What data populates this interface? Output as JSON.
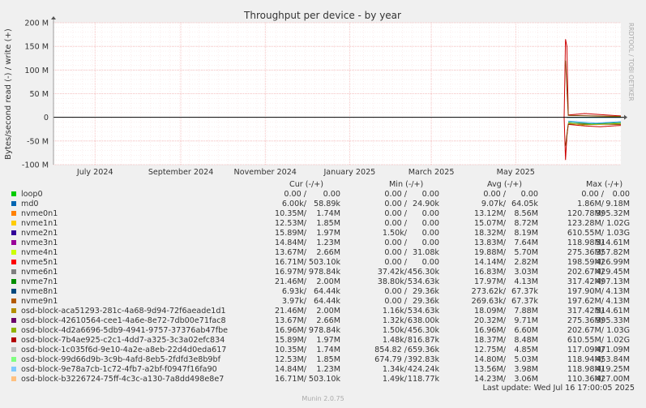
{
  "chart_data": {
    "type": "line",
    "title": "Throughput per device - by year",
    "ylabel": "Bytes/second read (-) / write (+)",
    "ylim": [
      -100000000,
      200000000
    ],
    "yticks": [
      {
        "value": 200000000,
        "label": "200 M"
      },
      {
        "value": 150000000,
        "label": "150 M"
      },
      {
        "value": 100000000,
        "label": "100 M"
      },
      {
        "value": 50000000,
        "label": "50 M"
      },
      {
        "value": 0,
        "label": "0"
      },
      {
        "value": -50000000,
        "label": "-50 M"
      },
      {
        "value": -100000000,
        "label": "-100 M"
      }
    ],
    "xlim": [
      "2024-06-01",
      "2025-07-16"
    ],
    "xticks": [
      {
        "date": "2024-07-01",
        "label": "July 2024"
      },
      {
        "date": "2024-09-01",
        "label": "September 2024"
      },
      {
        "date": "2024-11-01",
        "label": "November 2024"
      },
      {
        "date": "2025-01-01",
        "label": "January 2025"
      },
      {
        "date": "2025-03-01",
        "label": "March 2025"
      },
      {
        "date": "2025-05-01",
        "label": "May 2025"
      }
    ],
    "grid": true,
    "colors": {
      "grid": "#f4b8b8",
      "axis": "#000000",
      "background": "#ffffff",
      "canvas": "#f0f0f0"
    },
    "series_traces": [
      {
        "color": "#cc0000",
        "write": [
          [
            "2025-06-05",
            0
          ],
          [
            "2025-06-06",
            165000000
          ],
          [
            "2025-06-07",
            150000000
          ],
          [
            "2025-06-08",
            5000000
          ],
          [
            "2025-06-20",
            8000000
          ],
          [
            "2025-07-16",
            3000000
          ]
        ],
        "read": [
          [
            "2025-06-05",
            0
          ],
          [
            "2025-06-06",
            -90000000
          ],
          [
            "2025-06-07",
            -40000000
          ],
          [
            "2025-06-08",
            -15000000
          ],
          [
            "2025-06-20",
            -18000000
          ],
          [
            "2025-07-01",
            -20000000
          ],
          [
            "2025-07-16",
            -17000000
          ]
        ]
      },
      {
        "color": "#7b4400",
        "write": [
          [
            "2025-06-06",
            120000000
          ],
          [
            "2025-06-08",
            4000000
          ],
          [
            "2025-07-16",
            2000000
          ]
        ],
        "read": [
          [
            "2025-06-06",
            -60000000
          ],
          [
            "2025-06-08",
            -14000000
          ],
          [
            "2025-07-16",
            -15000000
          ]
        ]
      },
      {
        "color": "#aaaa00",
        "write": [
          [
            "2025-06-07",
            0
          ],
          [
            "2025-07-16",
            1000000
          ]
        ],
        "read": [
          [
            "2025-06-08",
            -12000000
          ],
          [
            "2025-06-18",
            -16000000
          ],
          [
            "2025-07-16",
            -13000000
          ]
        ]
      },
      {
        "color": "#00aa55",
        "write": [
          [
            "2025-06-07",
            0
          ],
          [
            "2025-07-16",
            0
          ]
        ],
        "read": [
          [
            "2025-06-08",
            -10000000
          ],
          [
            "2025-06-25",
            -14000000
          ],
          [
            "2025-07-16",
            -11000000
          ]
        ]
      },
      {
        "color": "#55aaff",
        "write": [
          [
            "2025-06-07",
            0
          ],
          [
            "2025-07-16",
            0
          ]
        ],
        "read": [
          [
            "2025-06-08",
            -8000000
          ],
          [
            "2025-06-28",
            -12000000
          ],
          [
            "2025-07-16",
            -9000000
          ]
        ]
      }
    ]
  },
  "legend": {
    "headers": {
      "cur": "Cur (-/+)",
      "min": "Min (-/+)",
      "avg": "Avg (-/+)",
      "max": "Max (-/+)"
    },
    "rows": [
      {
        "name": "loop0",
        "color": "#00cc00",
        "cur_r": "0.00 /",
        "cur_w": "0.00",
        "min_r": "0.00 /",
        "min_w": "0.00",
        "avg_r": "0.00 /",
        "avg_w": "0.00",
        "max_r": "0.00 /",
        "max_w": "0.00"
      },
      {
        "name": "md0",
        "color": "#0066b3",
        "cur_r": "6.00k/",
        "cur_w": "58.89k",
        "min_r": "0.00 /",
        "min_w": "24.90k",
        "avg_r": "9.07k/",
        "avg_w": "64.05k",
        "max_r": "1.86M/",
        "max_w": "9.18M"
      },
      {
        "name": "nvme0n1",
        "color": "#ff8000",
        "cur_r": "10.35M/",
        "cur_w": "1.74M",
        "min_r": "0.00 /",
        "min_w": "0.00",
        "avg_r": "13.12M/",
        "avg_w": "8.56M",
        "max_r": "120.78M/",
        "max_w": "995.32M"
      },
      {
        "name": "nvme1n1",
        "color": "#ffcc00",
        "cur_r": "12.53M/",
        "cur_w": "1.85M",
        "min_r": "0.00 /",
        "min_w": "0.00",
        "avg_r": "15.07M/",
        "avg_w": "8.72M",
        "max_r": "123.28M/",
        "max_w": "1.02G"
      },
      {
        "name": "nvme2n1",
        "color": "#330099",
        "cur_r": "15.89M/",
        "cur_w": "1.97M",
        "min_r": "1.50k/",
        "min_w": "0.00",
        "avg_r": "18.32M/",
        "avg_w": "8.19M",
        "max_r": "610.55M/",
        "max_w": "1.03G"
      },
      {
        "name": "nvme3n1",
        "color": "#990099",
        "cur_r": "14.84M/",
        "cur_w": "1.23M",
        "min_r": "0.00 /",
        "min_w": "0.00",
        "avg_r": "13.83M/",
        "avg_w": "7.64M",
        "max_r": "118.98M/",
        "max_w": "514.61M"
      },
      {
        "name": "nvme4n1",
        "color": "#ccff00",
        "cur_r": "13.67M/",
        "cur_w": "2.66M",
        "min_r": "0.00 /",
        "min_w": "31.08k",
        "avg_r": "19.88M/",
        "avg_w": "5.70M",
        "max_r": "275.36M/",
        "max_w": "357.82M"
      },
      {
        "name": "nvme5n1",
        "color": "#ff0000",
        "cur_r": "16.71M/",
        "cur_w": "503.10k",
        "min_r": "0.00 /",
        "min_w": "0.00",
        "avg_r": "14.14M/",
        "avg_w": "2.82M",
        "max_r": "198.59M/",
        "max_w": "426.99M"
      },
      {
        "name": "nvme6n1",
        "color": "#808080",
        "cur_r": "16.97M/",
        "cur_w": "978.84k",
        "min_r": "37.42k/",
        "min_w": "456.30k",
        "avg_r": "16.83M/",
        "avg_w": "3.03M",
        "max_r": "202.67M/",
        "max_w": "429.45M"
      },
      {
        "name": "nvme7n1",
        "color": "#008f00",
        "cur_r": "21.46M/",
        "cur_w": "2.00M",
        "min_r": "38.80k/",
        "min_w": "534.63k",
        "avg_r": "17.97M/",
        "avg_w": "4.13M",
        "max_r": "317.42M/",
        "max_w": "497.13M"
      },
      {
        "name": "nvme8n1",
        "color": "#00487d",
        "cur_r": "6.93k/",
        "cur_w": "64.44k",
        "min_r": "0.00 /",
        "min_w": "29.36k",
        "avg_r": "273.62k/",
        "avg_w": "67.37k",
        "max_r": "197.90M/",
        "max_w": "4.13M"
      },
      {
        "name": "nvme9n1",
        "color": "#b35a00",
        "cur_r": "3.97k/",
        "cur_w": "64.44k",
        "min_r": "0.00 /",
        "min_w": "29.36k",
        "avg_r": "269.63k/",
        "avg_w": "67.37k",
        "max_r": "197.62M/",
        "max_w": "4.13M"
      },
      {
        "name": "osd-block-aca51293-281c-4a68-9d94-72f6aeade1d1",
        "color": "#b38f00",
        "cur_r": "21.46M/",
        "cur_w": "2.00M",
        "min_r": "1.16k/",
        "min_w": "534.63k",
        "avg_r": "18.09M/",
        "avg_w": "7.88M",
        "max_r": "317.42M/",
        "max_w": "514.61M"
      },
      {
        "name": "osd-block-42610564-cee1-4a6e-8e72-7db00e71fac8",
        "color": "#6b006b",
        "cur_r": "13.67M/",
        "cur_w": "2.66M",
        "min_r": "1.32k/",
        "min_w": "638.00k",
        "avg_r": "20.32M/",
        "avg_w": "9.71M",
        "max_r": "275.36M/",
        "max_w": "995.33M"
      },
      {
        "name": "osd-block-4d2a6696-5db9-4941-9757-37376ab47fbe",
        "color": "#8fb300",
        "cur_r": "16.96M/",
        "cur_w": "978.84k",
        "min_r": "1.50k/",
        "min_w": "456.30k",
        "avg_r": "16.96M/",
        "avg_w": "6.60M",
        "max_r": "202.67M/",
        "max_w": "1.03G"
      },
      {
        "name": "osd-block-7b4ae925-c2c1-4dd7-a325-3c3a02efc834",
        "color": "#b30000",
        "cur_r": "15.89M/",
        "cur_w": "1.97M",
        "min_r": "1.48k/",
        "min_w": "816.87k",
        "avg_r": "18.37M/",
        "avg_w": "8.48M",
        "max_r": "610.55M/",
        "max_w": "1.02G"
      },
      {
        "name": "osd-block-1c035f6d-9e10-4a2e-a8eb-22d4d0eda617",
        "color": "#bebebe",
        "cur_r": "10.35M/",
        "cur_w": "1.74M",
        "min_r": "854.82 /",
        "min_w": "659.36k",
        "avg_r": "12.75M/",
        "avg_w": "4.85M",
        "max_r": "117.09M/",
        "max_w": "471.09M"
      },
      {
        "name": "osd-block-99d66d9b-3c9b-4afd-8eb5-2fdfd3e8b9bf",
        "color": "#80ff80",
        "cur_r": "12.53M/",
        "cur_w": "1.85M",
        "min_r": "674.79 /",
        "min_w": "392.83k",
        "avg_r": "14.80M/",
        "avg_w": "5.03M",
        "max_r": "118.94M/",
        "max_w": "453.84M"
      },
      {
        "name": "osd-block-9e78a7cb-1c72-4fb7-a2bf-f0947f16fa90",
        "color": "#80c9ff",
        "cur_r": "14.84M/",
        "cur_w": "1.23M",
        "min_r": "1.34k/",
        "min_w": "424.24k",
        "avg_r": "13.56M/",
        "avg_w": "3.98M",
        "max_r": "118.98M/",
        "max_w": "419.25M"
      },
      {
        "name": "osd-block-b3226724-75ff-4c3c-a130-7a8dd498e8e7",
        "color": "#ffc080",
        "cur_r": "16.71M/",
        "cur_w": "503.10k",
        "min_r": "1.49k/",
        "min_w": "118.77k",
        "avg_r": "14.23M/",
        "avg_w": "3.06M",
        "max_r": "110.36M/",
        "max_w": "427.00M"
      }
    ]
  },
  "last_update": "Last update: Wed Jul 16 17:00:05 2025",
  "watermark": "RRDTOOL / TOBI OETIKER",
  "footer": "Munin 2.0.75"
}
